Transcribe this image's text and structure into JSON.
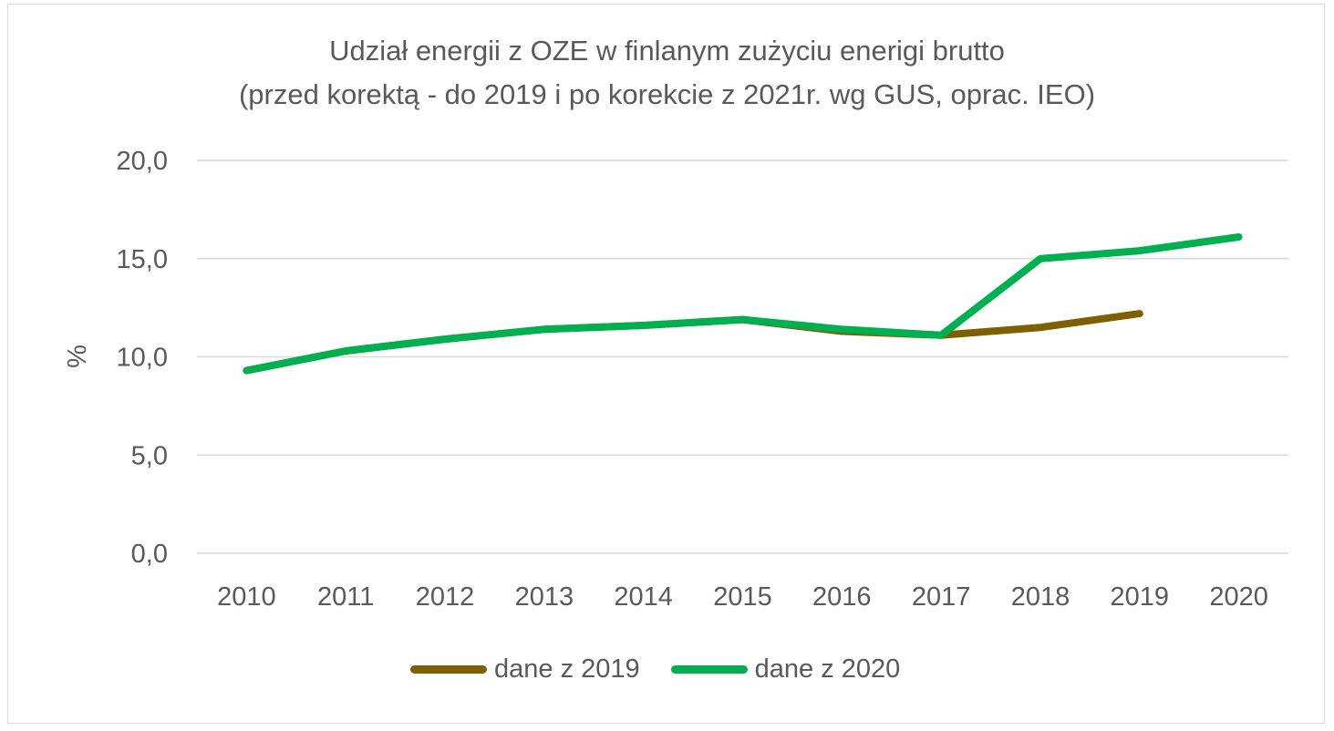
{
  "chart_data": {
    "type": "line",
    "title": "Udział energii z OZE w finlanym zużyciu enerigi brutto",
    "subtitle": "(przed korektą - do 2019 i po korekcie z 2021r. wg GUS, oprac. IEO)",
    "ylabel": "%",
    "xlabel": "",
    "categories": [
      "2010",
      "2011",
      "2012",
      "2013",
      "2014",
      "2015",
      "2016",
      "2017",
      "2018",
      "2019",
      "2020"
    ],
    "ylim": [
      0,
      20
    ],
    "yticks": [
      "0,0",
      "5,0",
      "10,0",
      "15,0",
      "20,0"
    ],
    "ytick_values": [
      0,
      5,
      10,
      15,
      20
    ],
    "grid": true,
    "legend_position": "bottom",
    "series": [
      {
        "name": "dane z 2019",
        "color": "#7f6000",
        "values": [
          9.3,
          10.3,
          10.9,
          11.4,
          11.6,
          11.9,
          11.3,
          11.1,
          11.5,
          12.2,
          null
        ]
      },
      {
        "name": "dane z 2020",
        "color": "#00b050",
        "values": [
          9.3,
          10.3,
          10.9,
          11.4,
          11.6,
          11.9,
          11.4,
          11.1,
          15.0,
          15.4,
          16.1
        ]
      }
    ]
  }
}
